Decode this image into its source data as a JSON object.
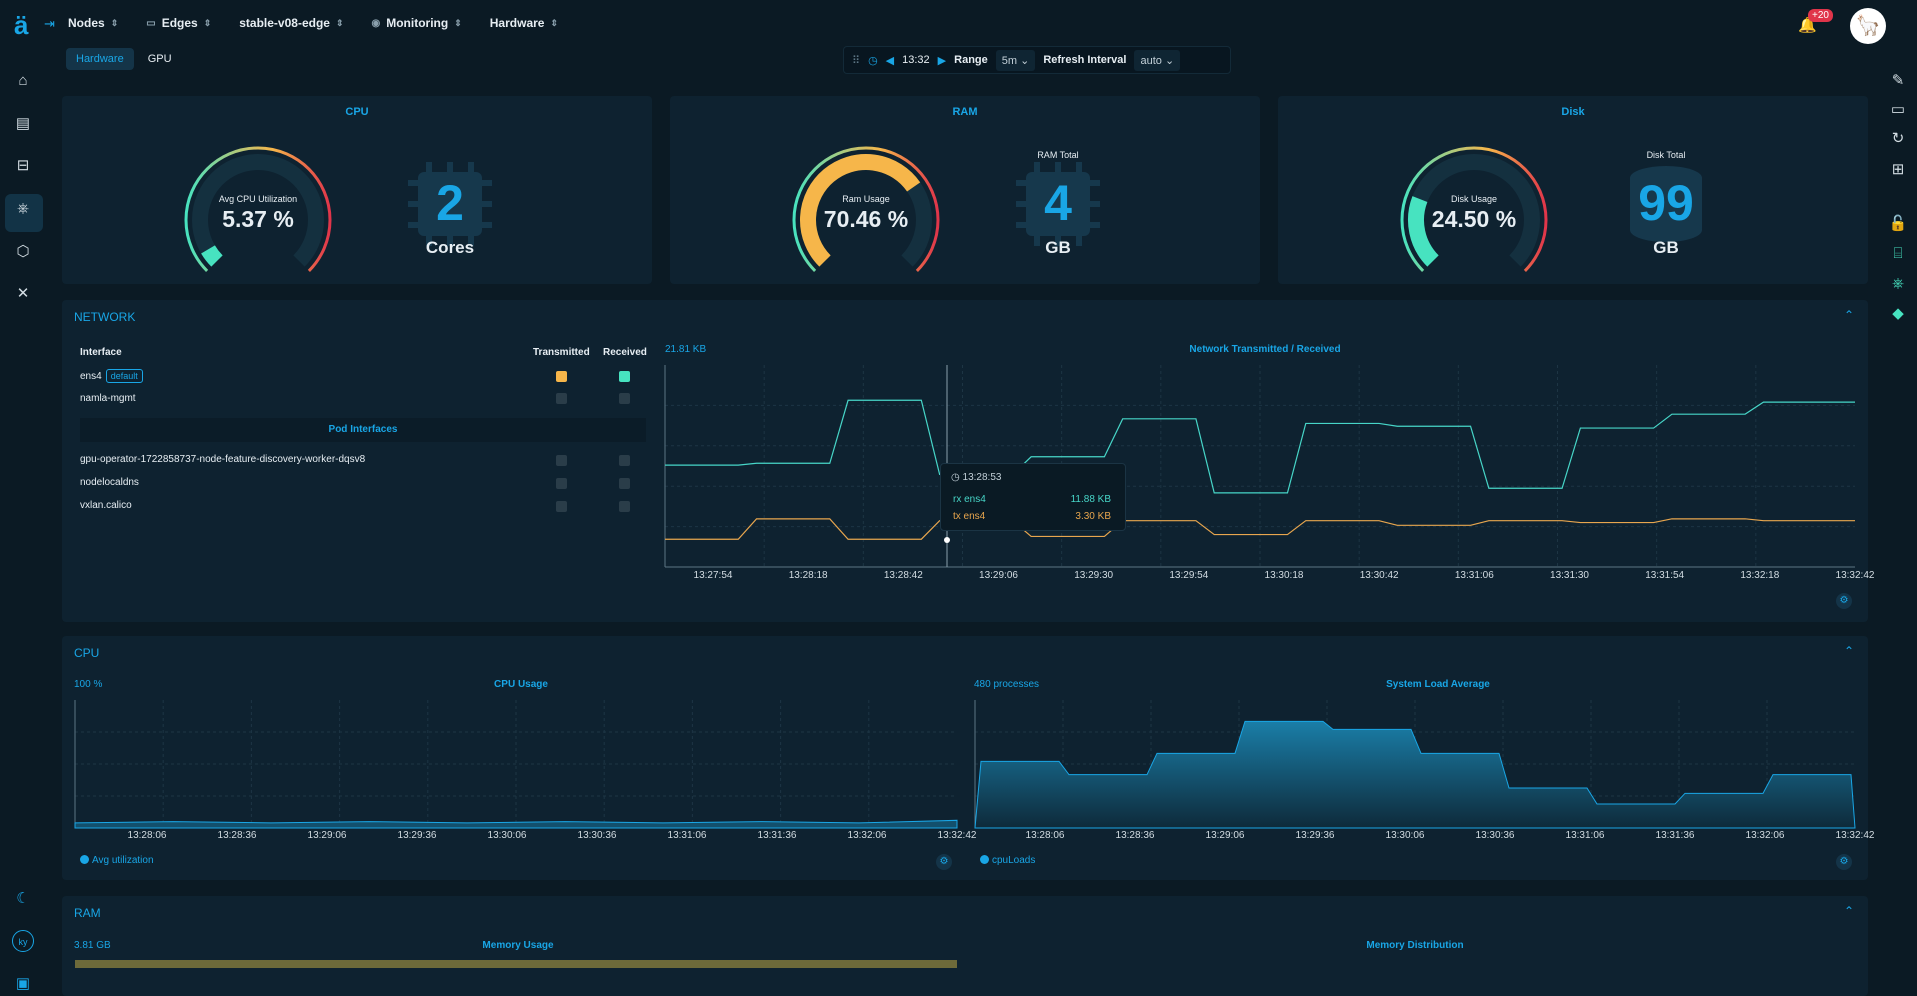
{
  "topbar": {
    "crumbs": [
      {
        "label": "Nodes",
        "icon": "none"
      },
      {
        "label": "Edges",
        "icon": "edge-icon"
      },
      {
        "label": "stable-v08-edge",
        "icon": "none"
      },
      {
        "label": "Monitoring",
        "icon": "monitoring-icon"
      },
      {
        "label": "Hardware",
        "icon": "none"
      }
    ],
    "notifications_badge": "+20"
  },
  "tabs": [
    {
      "label": "Hardware",
      "active": true
    },
    {
      "label": "GPU",
      "active": false
    }
  ],
  "timebar": {
    "time": "13:32",
    "range_label": "Range",
    "range_value": "5m",
    "refresh_label": "Refresh Interval",
    "refresh_value": "auto"
  },
  "cpu_card": {
    "title": "CPU",
    "gauge_label": "Avg CPU Utilization",
    "gauge_value": "5.37 %",
    "gauge_fraction": 0.0537,
    "count": "2",
    "unit": "Cores"
  },
  "ram_card": {
    "title": "RAM",
    "gauge_label": "Ram Usage",
    "gauge_value": "70.46 %",
    "gauge_fraction": 0.7046,
    "caption": "RAM Total",
    "count": "4",
    "unit": "GB"
  },
  "disk_card": {
    "title": "Disk",
    "gauge_label": "Disk Usage",
    "gauge_value": "24.50 %",
    "gauge_fraction": 0.245,
    "caption": "Disk Total",
    "count": "99",
    "unit": "GB"
  },
  "network": {
    "title": "NETWORK",
    "headers": {
      "interface": "Interface",
      "transmitted": "Transmitted",
      "received": "Received"
    },
    "interfaces": [
      {
        "name": "ens4",
        "badge": "default",
        "tx": true,
        "rx": true
      },
      {
        "name": "namla-mgmt",
        "tx": false,
        "rx": false
      }
    ],
    "pod_title": "Pod Interfaces",
    "pod_interfaces": [
      {
        "name": "gpu-operator-1722858737-node-feature-discovery-worker-dqsv8"
      },
      {
        "name": "nodelocaldns"
      },
      {
        "name": "vxlan.calico"
      }
    ],
    "chart_ylabel": "21.81 KB",
    "chart_title": "Network Transmitted / Received",
    "tooltip": {
      "time": "13:28:53",
      "rx_label": "rx ens4",
      "rx_value": "11.88 KB",
      "tx_label": "tx ens4",
      "tx_value": "3.30 KB"
    }
  },
  "cpu_section": {
    "title": "CPU",
    "usage_ylabel": "100 %",
    "usage_title": "CPU Usage",
    "usage_legend": "Avg utilization",
    "load_ylabel": "480 processes",
    "load_title": "System Load Average",
    "load_legend": "cpuLoads"
  },
  "ram_section": {
    "title": "RAM",
    "usage_ylabel": "3.81 GB",
    "usage_title": "Memory Usage",
    "dist_title": "Memory Distribution"
  },
  "chart_data": [
    {
      "type": "line",
      "title": "Network Transmitted / Received",
      "ylim": [
        0,
        21.81
      ],
      "x": [
        "13:27:54",
        "13:28:18",
        "13:28:42",
        "13:29:06",
        "13:29:30",
        "13:29:54",
        "13:30:18",
        "13:30:42",
        "13:31:06",
        "13:31:30",
        "13:31:54",
        "13:32:18",
        "13:32:42"
      ],
      "series": [
        {
          "name": "rx ens4",
          "color": "#47d6c8",
          "values": [
            11.0,
            11.2,
            18.0,
            10.0,
            11.9,
            16.0,
            8.0,
            15.5,
            15.2,
            8.5,
            15.0,
            16.5,
            17.8
          ]
        },
        {
          "name": "tx ens4",
          "color": "#e8a64e",
          "values": [
            3.0,
            5.2,
            3.0,
            5.0,
            3.3,
            5.0,
            3.5,
            5.0,
            4.5,
            5.0,
            4.8,
            5.2,
            5.0
          ]
        }
      ]
    },
    {
      "type": "area",
      "title": "CPU Usage",
      "ylim": [
        0,
        100
      ],
      "x": [
        "13:28:06",
        "13:28:36",
        "13:29:06",
        "13:29:36",
        "13:30:06",
        "13:30:36",
        "13:31:06",
        "13:31:36",
        "13:32:06",
        "13:32:42"
      ],
      "series": [
        {
          "name": "Avg utilization",
          "values": [
            4,
            5,
            4,
            5,
            4,
            5,
            4,
            5,
            4,
            6
          ]
        }
      ]
    },
    {
      "type": "area",
      "title": "System Load Average",
      "ylim": [
        0,
        480
      ],
      "x": [
        "13:28:06",
        "13:28:36",
        "13:29:06",
        "13:29:36",
        "13:30:06",
        "13:30:36",
        "13:31:06",
        "13:31:36",
        "13:32:06",
        "13:32:42"
      ],
      "series": [
        {
          "name": "cpuLoads",
          "values": [
            250,
            200,
            280,
            400,
            370,
            280,
            150,
            90,
            130,
            200
          ]
        }
      ]
    }
  ]
}
